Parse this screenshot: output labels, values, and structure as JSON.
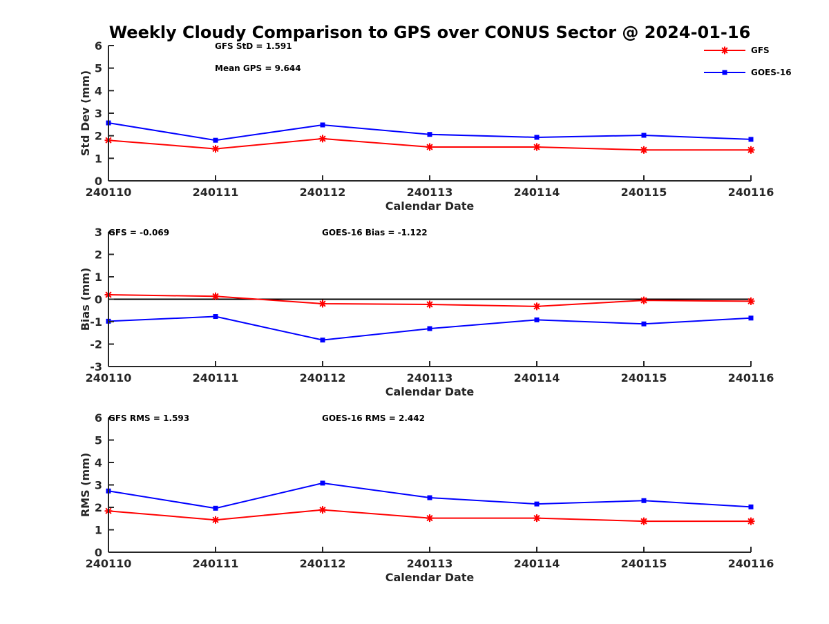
{
  "figure": {
    "title": "Weekly Cloudy Comparison to GPS over CONUS Sector @ 2024-01-16"
  },
  "legend": [
    {
      "name": "GFS",
      "color": "#ff0000",
      "marker": "asterisk"
    },
    {
      "name": "GOES-16",
      "color": "#0000ff",
      "marker": "square"
    }
  ],
  "chart_data": [
    {
      "type": "line",
      "xlabel": "Calendar Date",
      "ylabel": "Std Dev (mm)",
      "ylim": [
        0,
        6
      ],
      "yticks": [
        0,
        1,
        2,
        3,
        4,
        5,
        6
      ],
      "categories": [
        "240110",
        "240111",
        "240112",
        "240113",
        "240114",
        "240115",
        "240116"
      ],
      "zero_line": false,
      "legend_position": "top-right",
      "annotations": [
        "GFS StD = 1.591",
        "Mean GPS = 9.644"
      ],
      "series": [
        {
          "name": "GFS",
          "values": [
            1.8,
            1.42,
            1.87,
            1.5,
            1.5,
            1.37,
            1.37
          ]
        },
        {
          "name": "GOES-16",
          "values": [
            2.57,
            1.8,
            2.48,
            2.06,
            1.93,
            2.02,
            1.84
          ]
        }
      ]
    },
    {
      "type": "line",
      "xlabel": "Calendar Date",
      "ylabel": "Bias (mm)",
      "ylim": [
        -3,
        3
      ],
      "yticks": [
        -3,
        -2,
        -1,
        0,
        1,
        2,
        3
      ],
      "categories": [
        "240110",
        "240111",
        "240112",
        "240113",
        "240114",
        "240115",
        "240116"
      ],
      "zero_line": true,
      "annotations": [
        "GFS = -0.069",
        "GOES-16 Bias  = -1.122"
      ],
      "series": [
        {
          "name": "GFS",
          "values": [
            0.2,
            0.13,
            -0.2,
            -0.23,
            -0.32,
            -0.05,
            -0.09
          ]
        },
        {
          "name": "GOES-16",
          "values": [
            -0.98,
            -0.77,
            -1.82,
            -1.31,
            -0.92,
            -1.1,
            -0.84
          ]
        }
      ]
    },
    {
      "type": "line",
      "xlabel": "Calendar Date",
      "ylabel": "RMS (mm)",
      "ylim": [
        0,
        6
      ],
      "yticks": [
        0,
        1,
        2,
        3,
        4,
        5,
        6
      ],
      "categories": [
        "240110",
        "240111",
        "240112",
        "240113",
        "240114",
        "240115",
        "240116"
      ],
      "zero_line": false,
      "annotations": [
        "GFS RMS = 1.593",
        "GOES-16 RMS = 2.442"
      ],
      "series": [
        {
          "name": "GFS",
          "values": [
            1.84,
            1.44,
            1.89,
            1.52,
            1.52,
            1.38,
            1.38
          ]
        },
        {
          "name": "GOES-16",
          "values": [
            2.73,
            1.96,
            3.08,
            2.43,
            2.15,
            2.3,
            2.02
          ]
        }
      ]
    }
  ]
}
